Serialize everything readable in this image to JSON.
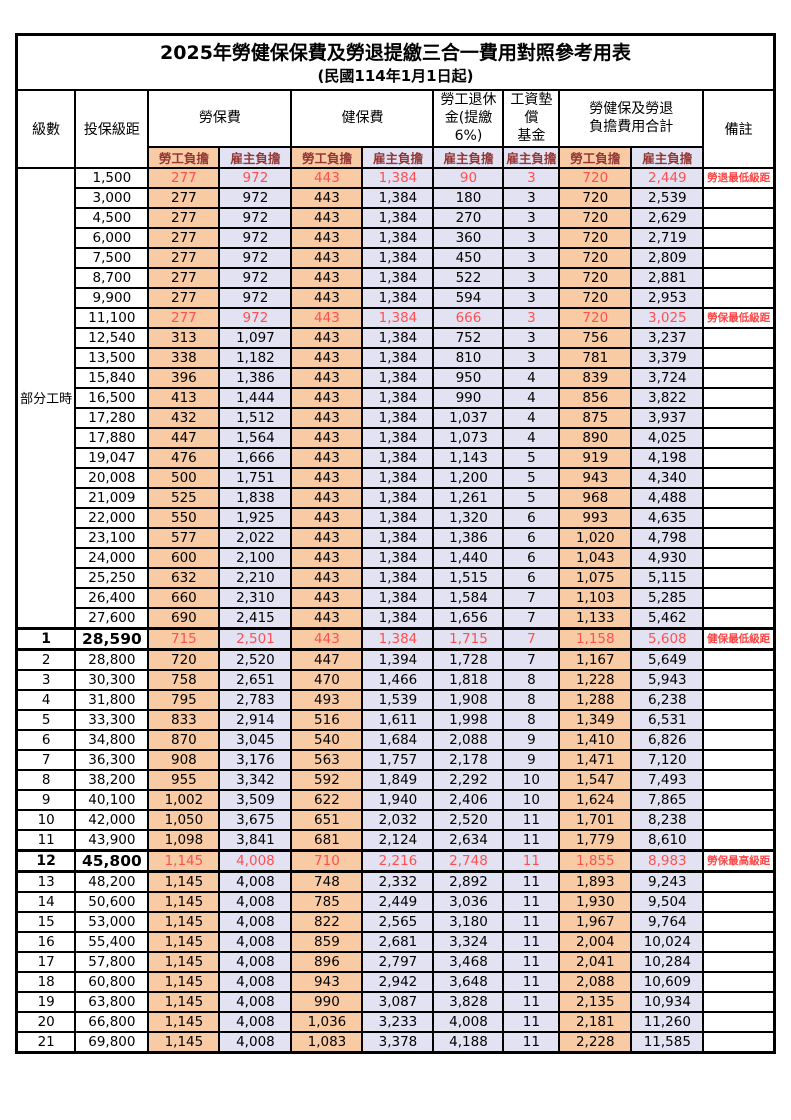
{
  "title": "2025年勞健保保費及勞退提繳三合一費用對照參考用表",
  "subtitle": "(民國114年1月1日起)",
  "colors": {
    "employee_bg": "#F8CBA4",
    "employer_bg": "#E2E2F2",
    "highlight_text": "#FF5050",
    "remark_text": "#FF4545",
    "subheader_text": "#953735",
    "border": "#000000"
  },
  "header": {
    "level": "級數",
    "bracket": "投保級距",
    "labor_fee": "勞保費",
    "health_fee": "健保費",
    "pension": "勞工退休\n金(提繳6%)",
    "wage_fund": "工資墊償\n基金",
    "total": "勞健保及勞退\n負擔費用合計",
    "remark": "備註",
    "employee": "勞工負擔",
    "employer": "雇主負擔"
  },
  "part_time_label": "部分工時",
  "column_kinds": [
    "c-emp",
    "c-er",
    "c-emp",
    "c-er",
    "c-er",
    "c-er",
    "c-emp",
    "c-er"
  ],
  "rows": [
    {
      "lv": "",
      "br": "1,500",
      "v": [
        "277",
        "972",
        "443",
        "1,384",
        "90",
        "3",
        "720",
        "2,449"
      ],
      "rm": "勞退最低級距",
      "red": true,
      "bold": false
    },
    {
      "lv": "",
      "br": "3,000",
      "v": [
        "277",
        "972",
        "443",
        "1,384",
        "180",
        "3",
        "720",
        "2,539"
      ],
      "rm": "",
      "red": false,
      "bold": false
    },
    {
      "lv": "",
      "br": "4,500",
      "v": [
        "277",
        "972",
        "443",
        "1,384",
        "270",
        "3",
        "720",
        "2,629"
      ],
      "rm": "",
      "red": false,
      "bold": false
    },
    {
      "lv": "",
      "br": "6,000",
      "v": [
        "277",
        "972",
        "443",
        "1,384",
        "360",
        "3",
        "720",
        "2,719"
      ],
      "rm": "",
      "red": false,
      "bold": false
    },
    {
      "lv": "",
      "br": "7,500",
      "v": [
        "277",
        "972",
        "443",
        "1,384",
        "450",
        "3",
        "720",
        "2,809"
      ],
      "rm": "",
      "red": false,
      "bold": false
    },
    {
      "lv": "",
      "br": "8,700",
      "v": [
        "277",
        "972",
        "443",
        "1,384",
        "522",
        "3",
        "720",
        "2,881"
      ],
      "rm": "",
      "red": false,
      "bold": false
    },
    {
      "lv": "",
      "br": "9,900",
      "v": [
        "277",
        "972",
        "443",
        "1,384",
        "594",
        "3",
        "720",
        "2,953"
      ],
      "rm": "",
      "red": false,
      "bold": false
    },
    {
      "lv": "",
      "br": "11,100",
      "v": [
        "277",
        "972",
        "443",
        "1,384",
        "666",
        "3",
        "720",
        "3,025"
      ],
      "rm": "勞保最低級距",
      "red": true,
      "bold": false
    },
    {
      "lv": "",
      "br": "12,540",
      "v": [
        "313",
        "1,097",
        "443",
        "1,384",
        "752",
        "3",
        "756",
        "3,237"
      ],
      "rm": "",
      "red": false,
      "bold": false
    },
    {
      "lv": "",
      "br": "13,500",
      "v": [
        "338",
        "1,182",
        "443",
        "1,384",
        "810",
        "3",
        "781",
        "3,379"
      ],
      "rm": "",
      "red": false,
      "bold": false
    },
    {
      "lv": "",
      "br": "15,840",
      "v": [
        "396",
        "1,386",
        "443",
        "1,384",
        "950",
        "4",
        "839",
        "3,724"
      ],
      "rm": "",
      "red": false,
      "bold": false
    },
    {
      "lv": "",
      "br": "16,500",
      "v": [
        "413",
        "1,444",
        "443",
        "1,384",
        "990",
        "4",
        "856",
        "3,822"
      ],
      "rm": "",
      "red": false,
      "bold": false
    },
    {
      "lv": "",
      "br": "17,280",
      "v": [
        "432",
        "1,512",
        "443",
        "1,384",
        "1,037",
        "4",
        "875",
        "3,937"
      ],
      "rm": "",
      "red": false,
      "bold": false
    },
    {
      "lv": "",
      "br": "17,880",
      "v": [
        "447",
        "1,564",
        "443",
        "1,384",
        "1,073",
        "4",
        "890",
        "4,025"
      ],
      "rm": "",
      "red": false,
      "bold": false
    },
    {
      "lv": "",
      "br": "19,047",
      "v": [
        "476",
        "1,666",
        "443",
        "1,384",
        "1,143",
        "5",
        "919",
        "4,198"
      ],
      "rm": "",
      "red": false,
      "bold": false
    },
    {
      "lv": "",
      "br": "20,008",
      "v": [
        "500",
        "1,751",
        "443",
        "1,384",
        "1,200",
        "5",
        "943",
        "4,340"
      ],
      "rm": "",
      "red": false,
      "bold": false
    },
    {
      "lv": "",
      "br": "21,009",
      "v": [
        "525",
        "1,838",
        "443",
        "1,384",
        "1,261",
        "5",
        "968",
        "4,488"
      ],
      "rm": "",
      "red": false,
      "bold": false
    },
    {
      "lv": "",
      "br": "22,000",
      "v": [
        "550",
        "1,925",
        "443",
        "1,384",
        "1,320",
        "6",
        "993",
        "4,635"
      ],
      "rm": "",
      "red": false,
      "bold": false
    },
    {
      "lv": "",
      "br": "23,100",
      "v": [
        "577",
        "2,022",
        "443",
        "1,384",
        "1,386",
        "6",
        "1,020",
        "4,798"
      ],
      "rm": "",
      "red": false,
      "bold": false
    },
    {
      "lv": "",
      "br": "24,000",
      "v": [
        "600",
        "2,100",
        "443",
        "1,384",
        "1,440",
        "6",
        "1,043",
        "4,930"
      ],
      "rm": "",
      "red": false,
      "bold": false
    },
    {
      "lv": "",
      "br": "25,250",
      "v": [
        "632",
        "2,210",
        "443",
        "1,384",
        "1,515",
        "6",
        "1,075",
        "5,115"
      ],
      "rm": "",
      "red": false,
      "bold": false
    },
    {
      "lv": "",
      "br": "26,400",
      "v": [
        "660",
        "2,310",
        "443",
        "1,384",
        "1,584",
        "7",
        "1,103",
        "5,285"
      ],
      "rm": "",
      "red": false,
      "bold": false
    },
    {
      "lv": "",
      "br": "27,600",
      "v": [
        "690",
        "2,415",
        "443",
        "1,384",
        "1,656",
        "7",
        "1,133",
        "5,462"
      ],
      "rm": "",
      "red": false,
      "bold": false
    },
    {
      "lv": "1",
      "br": "28,590",
      "v": [
        "715",
        "2,501",
        "443",
        "1,384",
        "1,715",
        "7",
        "1,158",
        "5,608"
      ],
      "rm": "健保最低級距",
      "red": true,
      "bold": true
    },
    {
      "lv": "2",
      "br": "28,800",
      "v": [
        "720",
        "2,520",
        "447",
        "1,394",
        "1,728",
        "7",
        "1,167",
        "5,649"
      ],
      "rm": "",
      "red": false,
      "bold": false
    },
    {
      "lv": "3",
      "br": "30,300",
      "v": [
        "758",
        "2,651",
        "470",
        "1,466",
        "1,818",
        "8",
        "1,228",
        "5,943"
      ],
      "rm": "",
      "red": false,
      "bold": false
    },
    {
      "lv": "4",
      "br": "31,800",
      "v": [
        "795",
        "2,783",
        "493",
        "1,539",
        "1,908",
        "8",
        "1,288",
        "6,238"
      ],
      "rm": "",
      "red": false,
      "bold": false
    },
    {
      "lv": "5",
      "br": "33,300",
      "v": [
        "833",
        "2,914",
        "516",
        "1,611",
        "1,998",
        "8",
        "1,349",
        "6,531"
      ],
      "rm": "",
      "red": false,
      "bold": false
    },
    {
      "lv": "6",
      "br": "34,800",
      "v": [
        "870",
        "3,045",
        "540",
        "1,684",
        "2,088",
        "9",
        "1,410",
        "6,826"
      ],
      "rm": "",
      "red": false,
      "bold": false
    },
    {
      "lv": "7",
      "br": "36,300",
      "v": [
        "908",
        "3,176",
        "563",
        "1,757",
        "2,178",
        "9",
        "1,471",
        "7,120"
      ],
      "rm": "",
      "red": false,
      "bold": false
    },
    {
      "lv": "8",
      "br": "38,200",
      "v": [
        "955",
        "3,342",
        "592",
        "1,849",
        "2,292",
        "10",
        "1,547",
        "7,493"
      ],
      "rm": "",
      "red": false,
      "bold": false
    },
    {
      "lv": "9",
      "br": "40,100",
      "v": [
        "1,002",
        "3,509",
        "622",
        "1,940",
        "2,406",
        "10",
        "1,624",
        "7,865"
      ],
      "rm": "",
      "red": false,
      "bold": false
    },
    {
      "lv": "10",
      "br": "42,000",
      "v": [
        "1,050",
        "3,675",
        "651",
        "2,032",
        "2,520",
        "11",
        "1,701",
        "8,238"
      ],
      "rm": "",
      "red": false,
      "bold": false
    },
    {
      "lv": "11",
      "br": "43,900",
      "v": [
        "1,098",
        "3,841",
        "681",
        "2,124",
        "2,634",
        "11",
        "1,779",
        "8,610"
      ],
      "rm": "",
      "red": false,
      "bold": false
    },
    {
      "lv": "12",
      "br": "45,800",
      "v": [
        "1,145",
        "4,008",
        "710",
        "2,216",
        "2,748",
        "11",
        "1,855",
        "8,983"
      ],
      "rm": "勞保最高級距",
      "red": true,
      "bold": true
    },
    {
      "lv": "13",
      "br": "48,200",
      "v": [
        "1,145",
        "4,008",
        "748",
        "2,332",
        "2,892",
        "11",
        "1,893",
        "9,243"
      ],
      "rm": "",
      "red": false,
      "bold": false
    },
    {
      "lv": "14",
      "br": "50,600",
      "v": [
        "1,145",
        "4,008",
        "785",
        "2,449",
        "3,036",
        "11",
        "1,930",
        "9,504"
      ],
      "rm": "",
      "red": false,
      "bold": false
    },
    {
      "lv": "15",
      "br": "53,000",
      "v": [
        "1,145",
        "4,008",
        "822",
        "2,565",
        "3,180",
        "11",
        "1,967",
        "9,764"
      ],
      "rm": "",
      "red": false,
      "bold": false
    },
    {
      "lv": "16",
      "br": "55,400",
      "v": [
        "1,145",
        "4,008",
        "859",
        "2,681",
        "3,324",
        "11",
        "2,004",
        "10,024"
      ],
      "rm": "",
      "red": false,
      "bold": false
    },
    {
      "lv": "17",
      "br": "57,800",
      "v": [
        "1,145",
        "4,008",
        "896",
        "2,797",
        "3,468",
        "11",
        "2,041",
        "10,284"
      ],
      "rm": "",
      "red": false,
      "bold": false
    },
    {
      "lv": "18",
      "br": "60,800",
      "v": [
        "1,145",
        "4,008",
        "943",
        "2,942",
        "3,648",
        "11",
        "2,088",
        "10,609"
      ],
      "rm": "",
      "red": false,
      "bold": false
    },
    {
      "lv": "19",
      "br": "63,800",
      "v": [
        "1,145",
        "4,008",
        "990",
        "3,087",
        "3,828",
        "11",
        "2,135",
        "10,934"
      ],
      "rm": "",
      "red": false,
      "bold": false
    },
    {
      "lv": "20",
      "br": "66,800",
      "v": [
        "1,145",
        "4,008",
        "1,036",
        "3,233",
        "4,008",
        "11",
        "2,181",
        "11,260"
      ],
      "rm": "",
      "red": false,
      "bold": false
    },
    {
      "lv": "21",
      "br": "69,800",
      "v": [
        "1,145",
        "4,008",
        "1,083",
        "3,378",
        "4,188",
        "11",
        "2,228",
        "11,585"
      ],
      "rm": "",
      "red": false,
      "bold": false
    }
  ],
  "part_time_row_count": 23
}
